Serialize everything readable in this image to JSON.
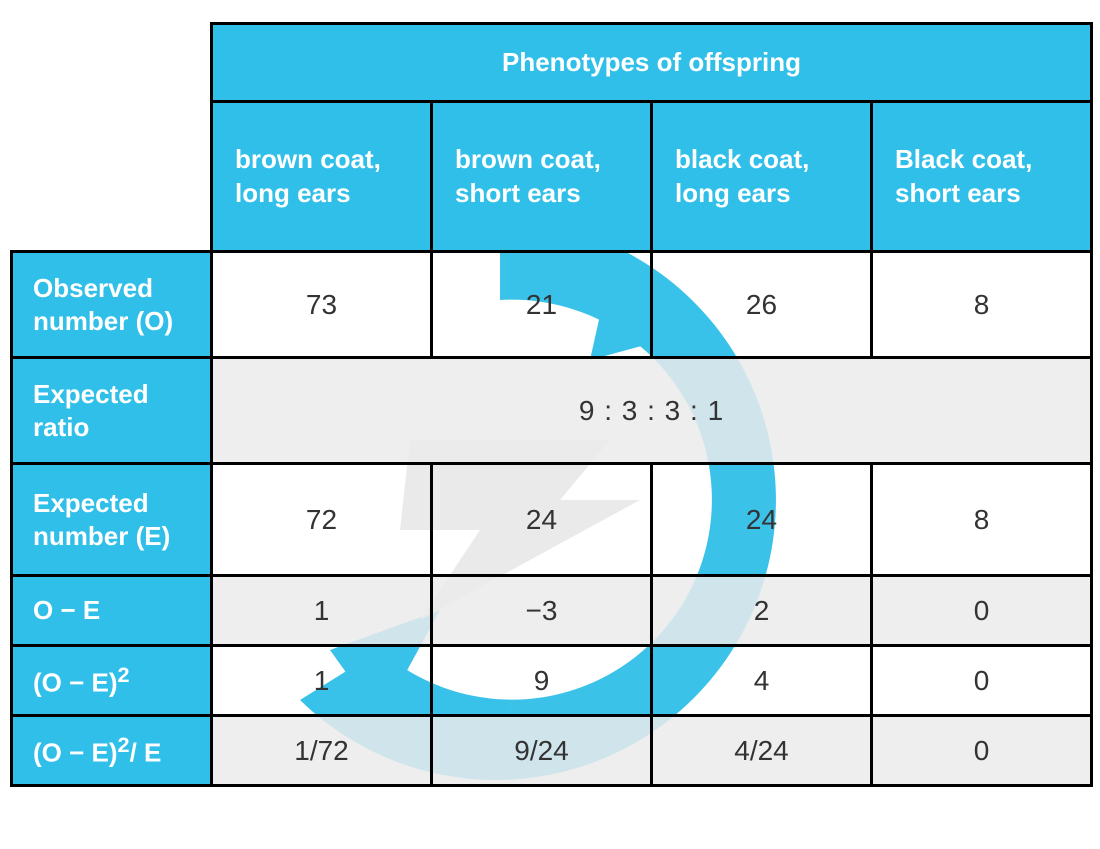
{
  "colors": {
    "header_bg": "#2fbfe8",
    "header_text": "#ffffff",
    "border": "#000000",
    "data_text": "#333333",
    "grey_row_bg": "#ebebeb",
    "white": "#ffffff"
  },
  "typography": {
    "family": "Comic Sans MS",
    "header_size_pt": 20,
    "data_size_pt": 21
  },
  "table": {
    "type": "table",
    "title": "Phenotypes of offspring",
    "columns": [
      "brown coat, long ears",
      "brown coat, short ears",
      "black coat, long ears",
      "Black coat, short ears"
    ],
    "rows": [
      {
        "label": "Observed number (O)",
        "cells": [
          "73",
          "21",
          "26",
          "8"
        ],
        "grey": false,
        "tall": "A"
      },
      {
        "label": "Expected ratio",
        "span_value": "9 : 3 : 3 : 1",
        "grey": true,
        "tall": "B"
      },
      {
        "label": "Expected number (E)",
        "cells": [
          "72",
          "24",
          "24",
          "8"
        ],
        "grey": false,
        "tall": "C"
      },
      {
        "label_html": "O − E",
        "label": "O − E",
        "cells": [
          "1",
          "−3",
          "2",
          "0"
        ],
        "grey": true,
        "tall": "S"
      },
      {
        "label_html": "(O − E)<sup>2</sup>",
        "label": "(O − E)²",
        "cells": [
          "1",
          "9",
          "4",
          "0"
        ],
        "grey": false,
        "tall": "S"
      },
      {
        "label_html": "(O − E)<sup>2</sup>/ E",
        "label": "(O − E)²/ E",
        "cells": [
          "1/72",
          "9/24",
          "4/24",
          "0"
        ],
        "grey": true,
        "tall": "S"
      }
    ]
  }
}
